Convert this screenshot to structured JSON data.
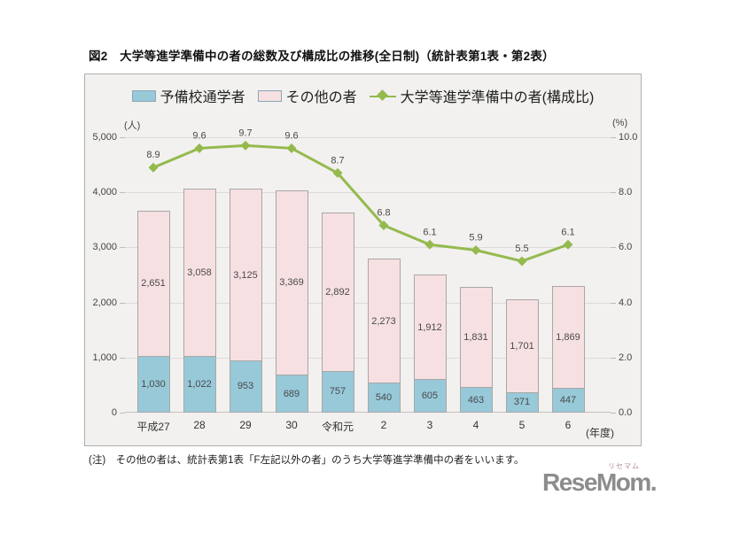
{
  "page": {
    "title": "図2　大学等進学準備中の者の総数及び構成比の推移(全日制)（統計表第1表・第2表）",
    "note": "(注)　その他の者は、統計表第1表「F左記以外の者」のうち大学等進学準備中の者をいいます。"
  },
  "logo": {
    "text": "ReseMom.",
    "ruby": "リセマム"
  },
  "chart_data": {
    "type": "bar",
    "subtype": "stacked-bar-with-line",
    "categories": [
      "平成27",
      "28",
      "29",
      "30",
      "令和元",
      "2",
      "3",
      "4",
      "5",
      "6"
    ],
    "x_unit": "(年度)",
    "series": [
      {
        "name": "予備校通学者",
        "type": "bar",
        "axis": "left",
        "color": "#97c9d9",
        "values": [
          1030,
          1022,
          953,
          689,
          757,
          540,
          605,
          463,
          371,
          447
        ],
        "labels": [
          "1,030",
          "1,022",
          "953",
          "689",
          "757",
          "540",
          "605",
          "463",
          "371",
          "447"
        ]
      },
      {
        "name": "その他の者",
        "type": "bar",
        "axis": "left",
        "color": "#f7e0e2",
        "values": [
          2651,
          3058,
          3125,
          3369,
          2892,
          2273,
          1912,
          1831,
          1701,
          1869
        ],
        "labels": [
          "2,651",
          "3,058",
          "3,125",
          "3,369",
          "2,892",
          "2,273",
          "1,912",
          "1,831",
          "1,701",
          "1,869"
        ]
      },
      {
        "name": "大学等進学準備中の者(構成比)",
        "type": "line",
        "axis": "right",
        "color": "#94ba4e",
        "values": [
          8.9,
          9.6,
          9.7,
          9.6,
          8.7,
          6.8,
          6.1,
          5.9,
          5.5,
          6.1
        ],
        "labels": [
          "8.9",
          "9.6",
          "9.7",
          "9.6",
          "8.7",
          "6.8",
          "6.1",
          "5.9",
          "5.5",
          "6.1"
        ]
      }
    ],
    "left_axis": {
      "unit": "(人)",
      "min": 0,
      "max": 5000,
      "ticks": [
        "0",
        "1,000",
        "2,000",
        "3,000",
        "4,000",
        "5,000"
      ]
    },
    "right_axis": {
      "unit": "(%)",
      "min": 0,
      "max": 10,
      "ticks": [
        "0.0",
        "2.0",
        "4.0",
        "6.0",
        "8.0",
        "10.0"
      ]
    },
    "grid": true,
    "legend_position": "top"
  }
}
